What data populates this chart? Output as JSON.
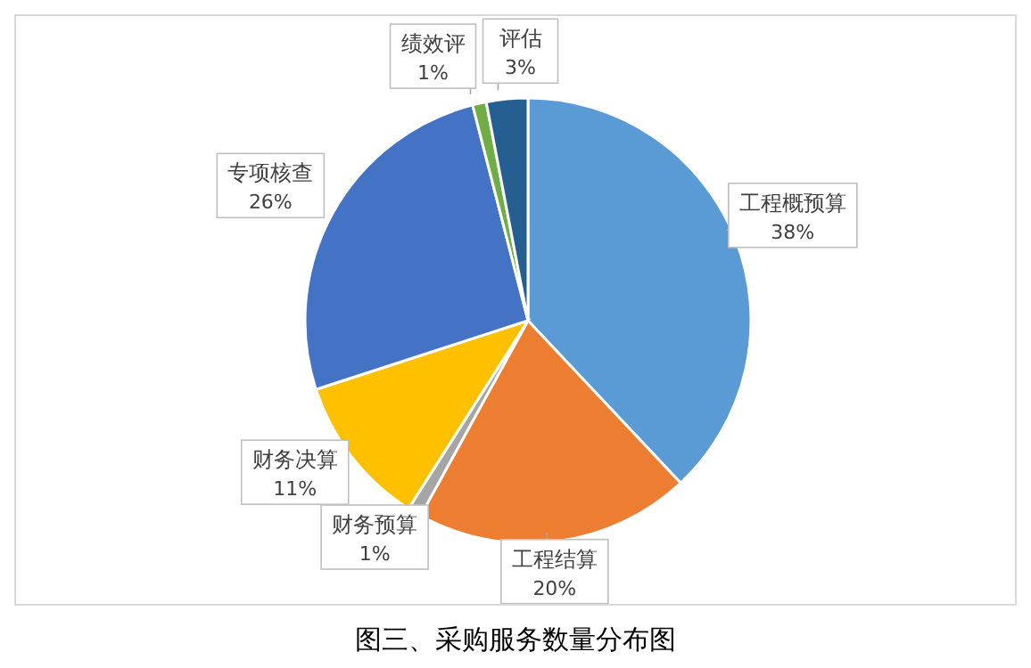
{
  "chart_data": {
    "type": "pie",
    "title": "图三、采购服务数量分布图",
    "categories": [
      "工程概预算",
      "工程结算",
      "财务预算",
      "财务决算",
      "专项核查",
      "绩效评",
      "评估"
    ],
    "values": [
      38,
      20,
      1,
      11,
      26,
      1,
      3
    ],
    "colors": [
      "#5b9bd5",
      "#ed7d31",
      "#a5a5a5",
      "#ffc000",
      "#4472c4",
      "#70ad47",
      "#255e91"
    ],
    "value_labels": [
      "38%",
      "20%",
      "1%",
      "11%",
      "26%",
      "1%",
      "3%"
    ],
    "legend": false
  }
}
